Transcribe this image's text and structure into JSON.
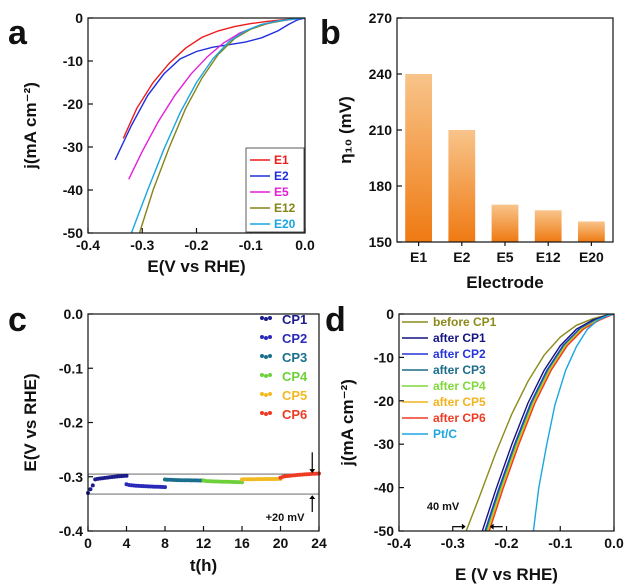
{
  "chart_data": [
    {
      "panel": "a",
      "type": "line",
      "xlabel": "E(V vs RHE)",
      "ylabel": "j(mA cm⁻²)",
      "xlim": [
        -0.4,
        0.0
      ],
      "ylim": [
        -50,
        0
      ],
      "xticks": [
        "-0.4",
        "-0.3",
        "-0.2",
        "-0.1",
        "0.0"
      ],
      "yticks": [
        "0",
        "-10",
        "-20",
        "-30",
        "-40",
        "-50"
      ],
      "legend_position": "bottom-right",
      "series": [
        {
          "name": "E1",
          "color": "#ee1c1c",
          "x": [
            -0.335,
            -0.31,
            -0.28,
            -0.25,
            -0.22,
            -0.19,
            -0.16,
            -0.13,
            -0.1,
            -0.07,
            -0.04,
            -0.02,
            0.0
          ],
          "y": [
            -28,
            -21,
            -15,
            -10.5,
            -7,
            -4.5,
            -3,
            -2,
            -1.3,
            -0.8,
            -0.4,
            -0.2,
            0
          ]
        },
        {
          "name": "E2",
          "color": "#1f2ee0",
          "x": [
            -0.35,
            -0.32,
            -0.29,
            -0.26,
            -0.23,
            -0.2,
            -0.17,
            -0.14,
            -0.11,
            -0.08,
            -0.05,
            -0.03,
            -0.015,
            0.0
          ],
          "y": [
            -33,
            -25,
            -18,
            -13,
            -9.5,
            -7.8,
            -6.8,
            -6.2,
            -5.6,
            -4.6,
            -3,
            -1.5,
            -0.5,
            0
          ]
        },
        {
          "name": "E5",
          "color": "#e51ed9",
          "x": [
            -0.325,
            -0.3,
            -0.27,
            -0.24,
            -0.21,
            -0.18,
            -0.15,
            -0.12,
            -0.09,
            -0.06,
            -0.035,
            -0.015,
            0.0
          ],
          "y": [
            -37.5,
            -31,
            -24,
            -18,
            -13,
            -9,
            -5.8,
            -3.5,
            -2,
            -1,
            -0.5,
            -0.2,
            0
          ]
        },
        {
          "name": "E12",
          "color": "#858318",
          "x": [
            -0.305,
            -0.28,
            -0.25,
            -0.22,
            -0.19,
            -0.16,
            -0.13,
            -0.1,
            -0.07,
            -0.04,
            -0.02,
            0.0
          ],
          "y": [
            -50,
            -40,
            -30,
            -21,
            -14,
            -8.5,
            -4.8,
            -2.6,
            -1.3,
            -0.6,
            -0.2,
            0
          ]
        },
        {
          "name": "E20",
          "color": "#1ba6e0",
          "x": [
            -0.32,
            -0.29,
            -0.26,
            -0.23,
            -0.2,
            -0.17,
            -0.14,
            -0.11,
            -0.08,
            -0.05,
            -0.025,
            0.0
          ],
          "y": [
            -50,
            -40,
            -30.5,
            -22,
            -15,
            -9.5,
            -5.5,
            -3,
            -1.5,
            -0.7,
            -0.3,
            0
          ]
        }
      ]
    },
    {
      "panel": "b",
      "type": "bar",
      "xlabel": "Electrode",
      "ylabel": "η₁₀ (mV)",
      "ylim": [
        150,
        270
      ],
      "yticks": [
        "150",
        "180",
        "210",
        "240",
        "270"
      ],
      "categories": [
        "E1",
        "E2",
        "E5",
        "E12",
        "E20"
      ],
      "values": [
        240,
        210,
        170,
        167,
        161
      ],
      "color_top": "#f8c48a",
      "color_bottom": "#ef7a12"
    },
    {
      "panel": "c",
      "type": "scatter",
      "xlabel": "t(h)",
      "ylabel": "E(V vs RHE)",
      "xlim": [
        0,
        24
      ],
      "ylim": [
        -0.4,
        0.0
      ],
      "xticks": [
        "0",
        "4",
        "8",
        "12",
        "16",
        "20",
        "24"
      ],
      "yticks": [
        "0.0",
        "-0.1",
        "-0.2",
        "-0.3",
        "-0.4"
      ],
      "legend_position": "top-right",
      "reference_lines": [
        -0.295,
        -0.332
      ],
      "annotation": "+20 mV",
      "series": [
        {
          "name": "CP1",
          "color": "#1c1c8c",
          "t_start": 0,
          "t_end": 4,
          "E_start": -0.31,
          "E_end": -0.298
        },
        {
          "name": "CP2",
          "color": "#2a2ab8",
          "t_start": 4,
          "t_end": 8,
          "E_start": -0.314,
          "E_end": -0.319
        },
        {
          "name": "CP3",
          "color": "#1a6f8c",
          "t_start": 8,
          "t_end": 12,
          "E_start": -0.305,
          "E_end": -0.307
        },
        {
          "name": "CP4",
          "color": "#6ed13a",
          "t_start": 12,
          "t_end": 16,
          "E_start": -0.307,
          "E_end": -0.31
        },
        {
          "name": "CP5",
          "color": "#f2b920",
          "t_start": 16,
          "t_end": 20,
          "E_start": -0.305,
          "E_end": -0.304
        },
        {
          "name": "CP6",
          "color": "#ee3b23",
          "t_start": 20,
          "t_end": 24,
          "E_start": -0.302,
          "E_end": -0.294
        }
      ]
    },
    {
      "panel": "d",
      "type": "line",
      "xlabel": "E (V vs RHE)",
      "ylabel": "j(mA cm⁻²)",
      "xlim": [
        -0.4,
        0.0
      ],
      "ylim": [
        -50,
        0
      ],
      "xticks": [
        "-0.4",
        "-0.3",
        "-0.2",
        "-0.1",
        "0.0"
      ],
      "yticks": [
        "0",
        "-10",
        "-20",
        "-30",
        "-40",
        "-50"
      ],
      "legend_position": "top-left",
      "annotation": "40 mV",
      "series": [
        {
          "name": "before CP1",
          "color": "#8b8a1a",
          "x": [
            -0.275,
            -0.25,
            -0.22,
            -0.19,
            -0.16,
            -0.13,
            -0.1,
            -0.07,
            -0.04,
            -0.015,
            0.0
          ],
          "y": [
            -50,
            -42,
            -32,
            -23,
            -15.5,
            -9.5,
            -5.3,
            -2.6,
            -1.1,
            -0.3,
            0
          ]
        },
        {
          "name": "after CP1",
          "color": "#141480",
          "x": [
            -0.245,
            -0.22,
            -0.19,
            -0.16,
            -0.13,
            -0.1,
            -0.07,
            -0.04,
            -0.015,
            0.0
          ],
          "y": [
            -50,
            -40.5,
            -30,
            -20.5,
            -13,
            -7.3,
            -3.5,
            -1.4,
            -0.4,
            0
          ]
        },
        {
          "name": "after CP2",
          "color": "#2535d8",
          "x": [
            -0.24,
            -0.215,
            -0.185,
            -0.155,
            -0.125,
            -0.095,
            -0.065,
            -0.035,
            -0.012,
            0.0
          ],
          "y": [
            -50,
            -40.5,
            -30,
            -20.5,
            -13,
            -7.3,
            -3.5,
            -1.4,
            -0.4,
            0
          ]
        },
        {
          "name": "after CP3",
          "color": "#1b6d8a",
          "x": [
            -0.238,
            -0.213,
            -0.183,
            -0.153,
            -0.123,
            -0.093,
            -0.063,
            -0.033,
            -0.011,
            0.0
          ],
          "y": [
            -50,
            -40.5,
            -30,
            -20.5,
            -13,
            -7.3,
            -3.5,
            -1.4,
            -0.4,
            0
          ]
        },
        {
          "name": "after CP4",
          "color": "#7fd93a",
          "x": [
            -0.236,
            -0.211,
            -0.181,
            -0.151,
            -0.121,
            -0.091,
            -0.061,
            -0.031,
            -0.01,
            0.0
          ],
          "y": [
            -50,
            -40.5,
            -30,
            -20.5,
            -13,
            -7.3,
            -3.5,
            -1.4,
            -0.4,
            0
          ]
        },
        {
          "name": "after CP5",
          "color": "#f2b320",
          "x": [
            -0.234,
            -0.209,
            -0.179,
            -0.149,
            -0.119,
            -0.089,
            -0.059,
            -0.029,
            -0.009,
            0.0
          ],
          "y": [
            -50,
            -40.5,
            -30,
            -20.5,
            -13,
            -7.3,
            -3.5,
            -1.4,
            -0.4,
            0
          ]
        },
        {
          "name": "after CP6",
          "color": "#ee3b23",
          "x": [
            -0.232,
            -0.207,
            -0.177,
            -0.147,
            -0.117,
            -0.087,
            -0.057,
            -0.027,
            -0.008,
            0.0
          ],
          "y": [
            -50,
            -40.5,
            -30,
            -20.5,
            -13,
            -7.3,
            -3.5,
            -1.4,
            -0.4,
            0
          ]
        },
        {
          "name": "Pt/C",
          "color": "#1ba6e0",
          "x": [
            -0.15,
            -0.14,
            -0.125,
            -0.11,
            -0.09,
            -0.07,
            -0.05,
            -0.03,
            -0.012,
            0.0
          ],
          "y": [
            -50,
            -40,
            -30,
            -21,
            -13,
            -7.5,
            -3.6,
            -1.4,
            -0.4,
            0
          ]
        }
      ]
    }
  ]
}
